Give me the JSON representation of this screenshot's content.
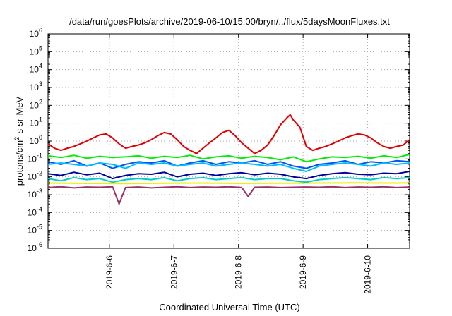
{
  "chart_data": {
    "type": "line",
    "title": "/data/run/goesPlots/archive/2019-06-10/15:00/bryn/../flux/5daysMoonFluxes.txt",
    "xlabel": "Coordinated Universal Time (UTC)",
    "ylabel": {
      "base": "protons/cm",
      "sup": "2",
      "rest": "-s-sr-MeV"
    },
    "yscale": "log",
    "ylim": [
      1e-06,
      1000000.0
    ],
    "xlim": [
      5.05,
      10.65
    ],
    "grid": true,
    "x_ticks": [
      {
        "value": 6,
        "label": "2019-6-6"
      },
      {
        "value": 7,
        "label": "2019-6-7"
      },
      {
        "value": 8,
        "label": "2019-6-8"
      },
      {
        "value": 9,
        "label": "2019-6-9"
      },
      {
        "value": 10,
        "label": "2019-6-10"
      }
    ],
    "y_ticks": [
      {
        "value": -6,
        "base": "10",
        "exp": "-6"
      },
      {
        "value": -5,
        "base": "10",
        "exp": "-5"
      },
      {
        "value": -4,
        "base": "10",
        "exp": "-4"
      },
      {
        "value": -3,
        "base": "10",
        "exp": "-3"
      },
      {
        "value": -2,
        "base": "10",
        "exp": "-2"
      },
      {
        "value": -1,
        "base": "10",
        "exp": "-1"
      },
      {
        "value": 0,
        "base": "10",
        "exp": "0"
      },
      {
        "value": 1,
        "base": "10",
        "exp": "1"
      },
      {
        "value": 2,
        "base": "10",
        "exp": "2"
      },
      {
        "value": 3,
        "base": "10",
        "exp": "3"
      },
      {
        "value": 4,
        "base": "10",
        "exp": "4"
      },
      {
        "value": 5,
        "base": "10",
        "exp": "5"
      },
      {
        "value": 6,
        "base": "10",
        "exp": "6"
      }
    ],
    "series": [
      {
        "color": "#e00000",
        "width": 2,
        "x": [
          5.05,
          5.15,
          5.25,
          5.35,
          5.45,
          5.55,
          5.65,
          5.75,
          5.85,
          5.95,
          6.05,
          6.15,
          6.25,
          6.35,
          6.45,
          6.55,
          6.65,
          6.75,
          6.85,
          6.95,
          7.05,
          7.15,
          7.25,
          7.35,
          7.45,
          7.55,
          7.65,
          7.75,
          7.85,
          7.95,
          8.05,
          8.15,
          8.25,
          8.35,
          8.45,
          8.55,
          8.65,
          8.75,
          8.8,
          8.85,
          8.95,
          9.05,
          9.15,
          9.25,
          9.35,
          9.45,
          9.55,
          9.65,
          9.75,
          9.85,
          9.95,
          10.05,
          10.15,
          10.25,
          10.35,
          10.45,
          10.55,
          10.65
        ],
        "y": [
          0.7,
          0.4,
          0.3,
          0.4,
          0.5,
          0.7,
          1.0,
          1.5,
          2.2,
          2.5,
          1.5,
          0.7,
          0.4,
          0.5,
          0.6,
          0.8,
          1.2,
          2.0,
          3.0,
          2.5,
          1.2,
          0.5,
          0.3,
          0.2,
          0.4,
          0.8,
          1.5,
          3.0,
          4.0,
          2.0,
          0.8,
          0.4,
          0.2,
          0.3,
          0.6,
          2.0,
          8.0,
          20,
          30,
          15,
          6,
          0.5,
          0.3,
          0.4,
          0.5,
          0.7,
          1.0,
          1.5,
          2.0,
          2.5,
          2.2,
          1.5,
          0.8,
          0.5,
          0.4,
          0.5,
          0.6,
          1.2
        ]
      },
      {
        "color": "#00ee00",
        "width": 2,
        "x": [
          5.05,
          5.25,
          5.45,
          5.65,
          5.85,
          6.05,
          6.25,
          6.45,
          6.65,
          6.85,
          7.05,
          7.25,
          7.45,
          7.65,
          7.85,
          8.05,
          8.25,
          8.45,
          8.65,
          8.85,
          9.05,
          9.25,
          9.45,
          9.65,
          9.85,
          10.05,
          10.25,
          10.45,
          10.65
        ],
        "y": [
          0.15,
          0.12,
          0.16,
          0.11,
          0.14,
          0.12,
          0.13,
          0.15,
          0.11,
          0.14,
          0.12,
          0.16,
          0.1,
          0.13,
          0.15,
          0.11,
          0.14,
          0.12,
          0.09,
          0.13,
          0.07,
          0.1,
          0.13,
          0.12,
          0.14,
          0.11,
          0.15,
          0.12,
          0.18
        ]
      },
      {
        "color": "#00bbff",
        "width": 2,
        "x": [
          5.05,
          5.25,
          5.45,
          5.65,
          5.85,
          6.05,
          6.25,
          6.45,
          6.65,
          6.85,
          7.05,
          7.25,
          7.45,
          7.65,
          7.85,
          8.05,
          8.25,
          8.45,
          8.65,
          8.85,
          9.05,
          9.25,
          9.45,
          9.65,
          9.85,
          10.05,
          10.25,
          10.45,
          10.65
        ],
        "y": [
          0.05,
          0.06,
          0.05,
          0.04,
          0.06,
          0.05,
          0.03,
          0.06,
          0.05,
          0.06,
          0.04,
          0.05,
          0.06,
          0.04,
          0.05,
          0.06,
          0.05,
          0.04,
          0.05,
          0.03,
          0.02,
          0.04,
          0.05,
          0.06,
          0.05,
          0.04,
          0.06,
          0.05,
          0.06
        ]
      },
      {
        "color": "#0055ee",
        "width": 2,
        "x": [
          5.05,
          5.25,
          5.45,
          5.65,
          5.85,
          6.05,
          6.25,
          6.45,
          6.65,
          6.85,
          7.05,
          7.25,
          7.45,
          7.65,
          7.85,
          8.05,
          8.25,
          8.45,
          8.65,
          8.85,
          9.05,
          9.25,
          9.45,
          9.65,
          9.85,
          10.05,
          10.25,
          10.45,
          10.65
        ],
        "y": [
          0.07,
          0.05,
          0.08,
          0.04,
          0.06,
          0.03,
          0.05,
          0.07,
          0.06,
          0.08,
          0.04,
          0.06,
          0.08,
          0.05,
          0.07,
          0.06,
          0.08,
          0.05,
          0.07,
          0.04,
          0.03,
          0.05,
          0.06,
          0.08,
          0.05,
          0.07,
          0.06,
          0.08,
          0.07
        ]
      },
      {
        "color": "#000099",
        "width": 2,
        "x": [
          5.05,
          5.25,
          5.45,
          5.65,
          5.85,
          6.05,
          6.25,
          6.45,
          6.65,
          6.85,
          7.05,
          7.25,
          7.45,
          7.65,
          7.85,
          8.05,
          8.25,
          8.45,
          8.65,
          8.85,
          9.05,
          9.25,
          9.45,
          9.65,
          9.85,
          10.05,
          10.25,
          10.45,
          10.65
        ],
        "y": [
          0.015,
          0.012,
          0.018,
          0.013,
          0.016,
          0.008,
          0.012,
          0.015,
          0.014,
          0.018,
          0.01,
          0.014,
          0.016,
          0.012,
          0.015,
          0.017,
          0.013,
          0.016,
          0.014,
          0.01,
          0.008,
          0.012,
          0.015,
          0.017,
          0.014,
          0.013,
          0.016,
          0.015,
          0.02
        ]
      },
      {
        "color": "#00cccc",
        "width": 2,
        "x": [
          5.05,
          5.25,
          5.45,
          5.65,
          5.85,
          6.05,
          6.25,
          6.45,
          6.65,
          6.85,
          7.05,
          7.25,
          7.45,
          7.65,
          7.85,
          8.05,
          8.25,
          8.45,
          8.65,
          8.85,
          9.05,
          9.25,
          9.45,
          9.65,
          9.85,
          10.05,
          10.25,
          10.45,
          10.65
        ],
        "y": [
          0.008,
          0.006,
          0.009,
          0.007,
          0.008,
          0.005,
          0.007,
          0.008,
          0.007,
          0.009,
          0.006,
          0.008,
          0.009,
          0.007,
          0.008,
          0.009,
          0.007,
          0.008,
          0.008,
          0.006,
          0.005,
          0.007,
          0.008,
          0.009,
          0.008,
          0.007,
          0.009,
          0.008,
          0.009
        ]
      },
      {
        "color": "#eeee00",
        "width": 2,
        "x": [
          5.05,
          5.65,
          6.25,
          6.85,
          7.45,
          8.05,
          8.65,
          9.25,
          9.85,
          10.45,
          10.65
        ],
        "y": [
          0.0045,
          0.0043,
          0.0042,
          0.0044,
          0.0045,
          0.0043,
          0.0044,
          0.0045,
          0.0046,
          0.0045,
          0.0046
        ]
      },
      {
        "color": "#993366",
        "width": 2,
        "x": [
          5.05,
          5.25,
          5.45,
          5.65,
          5.85,
          6.05,
          6.15,
          6.25,
          6.45,
          6.65,
          6.85,
          7.05,
          7.25,
          7.45,
          7.65,
          7.85,
          8.05,
          8.15,
          8.25,
          8.45,
          8.65,
          8.85,
          9.05,
          9.25,
          9.45,
          9.65,
          9.85,
          10.05,
          10.25,
          10.45,
          10.65
        ],
        "y": [
          0.0025,
          0.0028,
          0.0024,
          0.0027,
          0.0026,
          0.0028,
          0.0003,
          0.0025,
          0.0027,
          0.0024,
          0.0026,
          0.0028,
          0.0025,
          0.0027,
          0.0026,
          0.0028,
          0.0025,
          0.0008,
          0.0026,
          0.0027,
          0.0025,
          0.0026,
          0.0027,
          0.0026,
          0.0028,
          0.0025,
          0.0027,
          0.0026,
          0.0028,
          0.0025,
          0.0027
        ]
      }
    ]
  }
}
